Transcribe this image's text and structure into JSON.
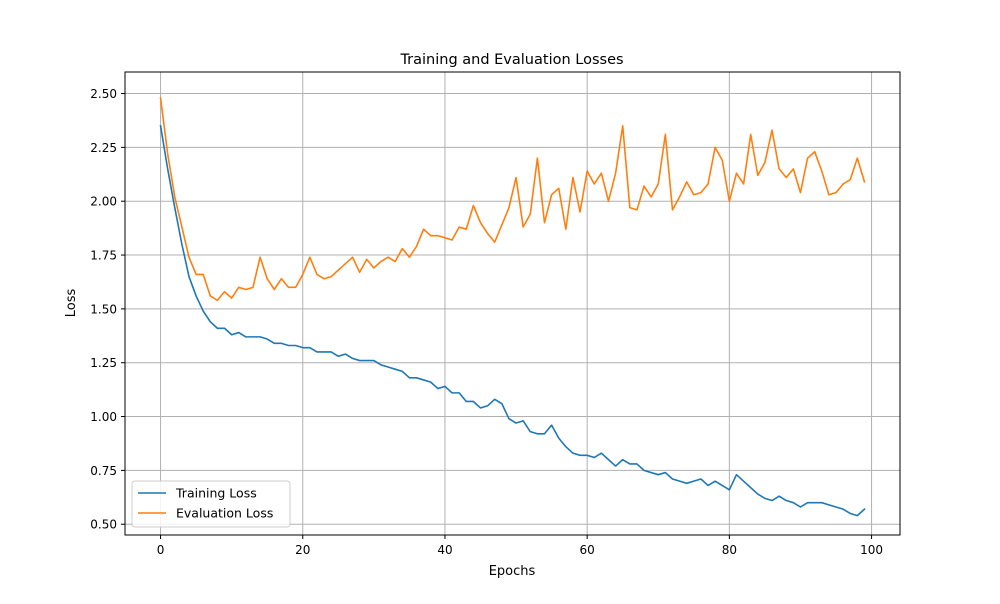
{
  "chart_data": {
    "type": "line",
    "title": "Training and Evaluation Losses",
    "xlabel": "Epochs",
    "ylabel": "Loss",
    "xlim": [
      -5,
      104
    ],
    "ylim": [
      0.45,
      2.6
    ],
    "x_ticks": [
      0,
      20,
      40,
      60,
      80,
      100
    ],
    "y_ticks": [
      0.5,
      0.75,
      1.0,
      1.25,
      1.5,
      1.75,
      2.0,
      2.25,
      2.5
    ],
    "x_tick_labels": [
      "0",
      "20",
      "40",
      "60",
      "80",
      "100"
    ],
    "y_tick_labels": [
      "0.50",
      "0.75",
      "1.00",
      "1.25",
      "1.50",
      "1.75",
      "2.00",
      "2.25",
      "2.50"
    ],
    "grid": true,
    "legend_position": "lower-left",
    "x": [
      0,
      1,
      2,
      3,
      4,
      5,
      6,
      7,
      8,
      9,
      10,
      11,
      12,
      13,
      14,
      15,
      16,
      17,
      18,
      19,
      20,
      21,
      22,
      23,
      24,
      25,
      26,
      27,
      28,
      29,
      30,
      31,
      32,
      33,
      34,
      35,
      36,
      37,
      38,
      39,
      40,
      41,
      42,
      43,
      44,
      45,
      46,
      47,
      48,
      49,
      50,
      51,
      52,
      53,
      54,
      55,
      56,
      57,
      58,
      59,
      60,
      61,
      62,
      63,
      64,
      65,
      66,
      67,
      68,
      69,
      70,
      71,
      72,
      73,
      74,
      75,
      76,
      77,
      78,
      79,
      80,
      81,
      82,
      83,
      84,
      85,
      86,
      87,
      88,
      89,
      90,
      91,
      92,
      93,
      94,
      95,
      96,
      97,
      98,
      99
    ],
    "series": [
      {
        "name": "Training Loss",
        "color": "#1f77b4",
        "values": [
          2.35,
          2.15,
          1.97,
          1.8,
          1.65,
          1.56,
          1.49,
          1.44,
          1.41,
          1.41,
          1.38,
          1.39,
          1.37,
          1.37,
          1.37,
          1.36,
          1.34,
          1.34,
          1.33,
          1.33,
          1.32,
          1.32,
          1.3,
          1.3,
          1.3,
          1.28,
          1.29,
          1.27,
          1.26,
          1.26,
          1.26,
          1.24,
          1.23,
          1.22,
          1.21,
          1.18,
          1.18,
          1.17,
          1.16,
          1.13,
          1.14,
          1.11,
          1.11,
          1.07,
          1.07,
          1.04,
          1.05,
          1.08,
          1.06,
          0.99,
          0.97,
          0.98,
          0.93,
          0.92,
          0.92,
          0.96,
          0.9,
          0.86,
          0.83,
          0.82,
          0.82,
          0.81,
          0.83,
          0.8,
          0.77,
          0.8,
          0.78,
          0.78,
          0.75,
          0.74,
          0.73,
          0.74,
          0.71,
          0.7,
          0.69,
          0.7,
          0.71,
          0.68,
          0.7,
          0.68,
          0.66,
          0.73,
          0.7,
          0.67,
          0.64,
          0.62,
          0.61,
          0.63,
          0.61,
          0.6,
          0.58,
          0.6,
          0.6,
          0.6,
          0.59,
          0.58,
          0.57,
          0.55,
          0.54,
          0.57
        ]
      },
      {
        "name": "Evaluation Loss",
        "color": "#ff7f0e",
        "values": [
          2.48,
          2.22,
          2.02,
          1.88,
          1.74,
          1.66,
          1.66,
          1.56,
          1.54,
          1.58,
          1.55,
          1.6,
          1.59,
          1.6,
          1.74,
          1.64,
          1.59,
          1.64,
          1.6,
          1.6,
          1.66,
          1.74,
          1.66,
          1.64,
          1.65,
          1.68,
          1.71,
          1.74,
          1.67,
          1.73,
          1.69,
          1.72,
          1.74,
          1.72,
          1.78,
          1.74,
          1.79,
          1.87,
          1.84,
          1.84,
          1.83,
          1.82,
          1.88,
          1.87,
          1.98,
          1.9,
          1.85,
          1.81,
          1.89,
          1.97,
          2.11,
          1.88,
          1.94,
          2.2,
          1.9,
          2.03,
          2.06,
          1.87,
          2.11,
          1.95,
          2.14,
          2.08,
          2.13,
          2.0,
          2.13,
          2.35,
          1.97,
          1.96,
          2.07,
          2.02,
          2.08,
          2.31,
          1.96,
          2.02,
          2.09,
          2.03,
          2.04,
          2.08,
          2.25,
          2.19,
          2.0,
          2.13,
          2.08,
          2.31,
          2.12,
          2.18,
          2.33,
          2.15,
          2.11,
          2.15,
          2.04,
          2.2,
          2.23,
          2.14,
          2.03,
          2.04,
          2.08,
          2.1,
          2.2,
          2.09
        ]
      }
    ]
  }
}
